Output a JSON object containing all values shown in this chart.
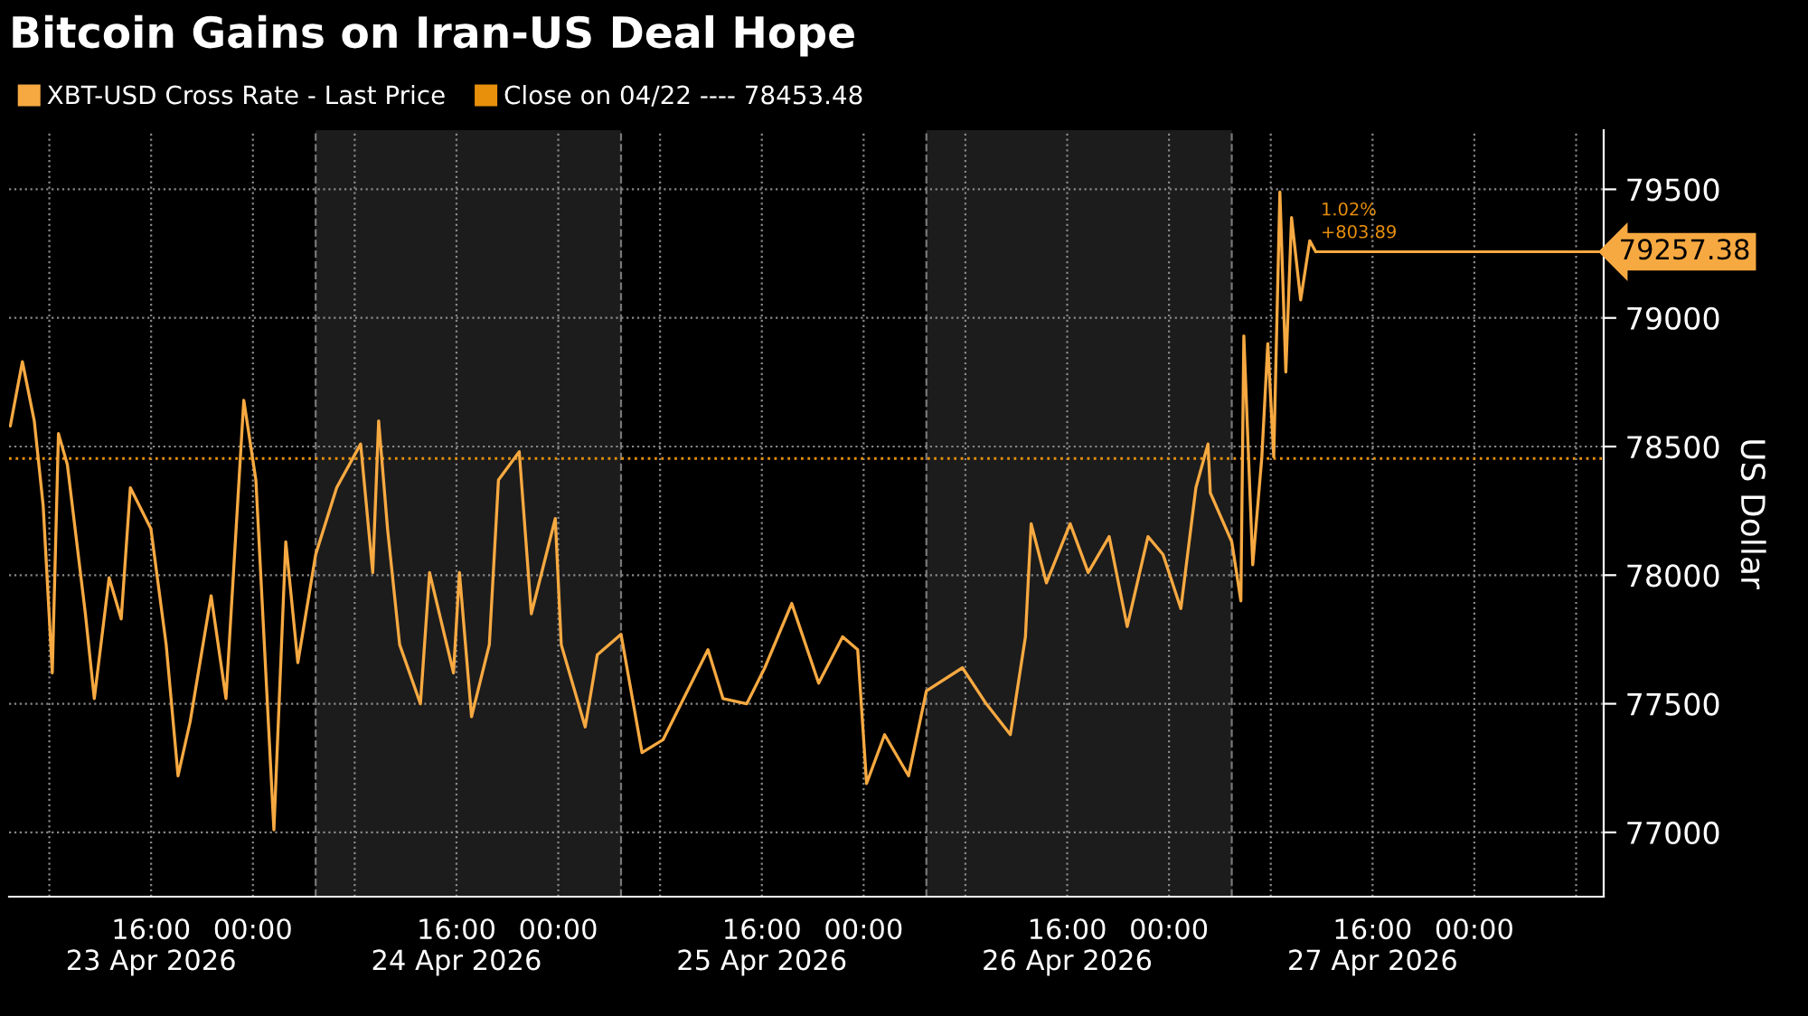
{
  "chart_data": {
    "type": "line",
    "title": "Bitcoin Gains on Iran-US Deal Hope",
    "ylabel": "US Dollar",
    "x": [
      "2026-04-23T04:56",
      "2026-04-23T05:53",
      "2026-04-23T06:49",
      "2026-04-23T07:31",
      "2026-04-23T08:14",
      "2026-04-23T08:43",
      "2026-04-23T09:25",
      "2026-04-23T10:50",
      "2026-04-23T11:32",
      "2026-04-23T12:42",
      "2026-04-23T13:39",
      "2026-04-23T14:22",
      "2026-04-23T15:59",
      "2026-04-23T17:11",
      "2026-04-23T18:07",
      "2026-04-23T19:04",
      "2026-04-23T20:43",
      "2026-04-23T21:53",
      "2026-04-23T23:17",
      "2026-04-24T00:14",
      "2026-04-24T01:39",
      "2026-04-24T02:35",
      "2026-04-24T03:32",
      "2026-04-24T04:56",
      "2026-04-24T06:35",
      "2026-04-24T08:28",
      "2026-04-24T09:25",
      "2026-04-24T09:53",
      "2026-04-24T10:35",
      "2026-04-24T11:32",
      "2026-04-24T13:10",
      "2026-04-24T13:53",
      "2026-04-24T15:46",
      "2026-04-24T16:14",
      "2026-04-24T17:11",
      "2026-04-24T18:35",
      "2026-04-24T19:18",
      "2026-04-24T20:56",
      "2026-04-24T21:53",
      "2026-04-24T23:46",
      "2026-04-25T00:14",
      "2026-04-25T02:07",
      "2026-04-25T03:04",
      "2026-04-25T03:32",
      "2026-04-25T04:56",
      "2026-04-25T06:35",
      "2026-04-25T08:14",
      "2026-04-25T11:46",
      "2026-04-25T12:57",
      "2026-04-25T14:49",
      "2026-04-25T16:14",
      "2026-04-25T18:21",
      "2026-04-25T20:28",
      "2026-04-25T22:21",
      "2026-04-25T23:32",
      "2026-04-26T00:14",
      "2026-04-26T01:39",
      "2026-04-26T03:32",
      "2026-04-26T04:56",
      "2026-04-26T07:46",
      "2026-04-26T09:38",
      "2026-04-26T11:32",
      "2026-04-26T12:43",
      "2026-04-26T13:10",
      "2026-04-26T14:22",
      "2026-04-26T16:14",
      "2026-04-26T17:39",
      "2026-04-26T19:18",
      "2026-04-26T20:43",
      "2026-04-26T22:21",
      "2026-04-26T23:32",
      "2026-04-27T00:56",
      "2026-04-27T02:07",
      "2026-04-27T03:04",
      "2026-04-27T03:15",
      "2026-04-27T04:56",
      "2026-04-27T05:39",
      "2026-04-27T05:53",
      "2026-04-27T06:35",
      "2026-04-27T07:18",
      "2026-04-27T07:46",
      "2026-04-27T08:14",
      "2026-04-27T08:43",
      "2026-04-27T09:11",
      "2026-04-27T09:38",
      "2026-04-27T10:21",
      "2026-04-27T11:04",
      "2026-04-27T11:32"
    ],
    "series": [
      {
        "name": "XBT-USD Cross Rate - Last Price",
        "color": "#f7a941",
        "values": [
          78580,
          78830,
          78600,
          78270,
          77620,
          78550,
          78430,
          77850,
          77520,
          77990,
          77830,
          78340,
          78180,
          77730,
          77220,
          77430,
          77920,
          77520,
          78680,
          78370,
          77010,
          78130,
          77660,
          78080,
          78340,
          78510,
          78010,
          78600,
          78180,
          77730,
          77500,
          78010,
          77620,
          78010,
          77450,
          77730,
          78370,
          78480,
          77850,
          78220,
          77730,
          77410,
          77690,
          77710,
          77770,
          77310,
          77360,
          77710,
          77520,
          77500,
          77640,
          77890,
          77580,
          77760,
          77710,
          77190,
          77380,
          77220,
          77550,
          77640,
          77500,
          77380,
          77760,
          78200,
          77970,
          78200,
          78010,
          78150,
          77800,
          78150,
          78080,
          77870,
          78340,
          78510,
          78320,
          78130,
          77900,
          78930,
          78040,
          78460,
          78900,
          78460,
          79490,
          78790,
          79390,
          79070,
          79300,
          79257.38
        ],
        "value_labels": [
          null,
          null,
          null,
          null,
          null,
          null,
          null,
          null,
          null,
          null,
          null,
          null,
          null,
          null,
          null,
          null,
          null,
          null,
          null,
          null,
          null,
          null,
          null,
          null,
          null,
          null,
          null,
          null,
          null,
          null,
          null,
          null,
          null,
          null,
          null,
          null,
          null,
          null,
          null,
          null,
          null,
          null,
          null,
          null,
          null,
          null,
          null,
          null,
          null,
          null,
          null,
          null,
          null,
          null,
          null,
          null,
          null,
          null,
          null,
          null,
          null,
          null,
          null,
          null,
          null,
          null,
          null,
          null,
          null,
          null,
          null,
          null,
          null,
          null,
          null,
          null,
          null,
          null,
          null,
          null,
          null,
          null,
          null,
          null,
          null,
          null,
          null,
          "79257.38"
        ]
      }
    ],
    "xlim": [
      "2026-04-23T04:50",
      "2026-04-28T10:10"
    ],
    "xticks": [
      {
        "value": "2026-04-23T08:00",
        "label": null
      },
      {
        "value": "2026-04-23T16:00",
        "label": "16:00\n23 Apr 2026"
      },
      {
        "value": "2026-04-24T00:00",
        "label": "00:00"
      },
      {
        "value": "2026-04-24T08:00",
        "label": null
      },
      {
        "value": "2026-04-24T16:00",
        "label": "16:00\n24 Apr 2026"
      },
      {
        "value": "2026-04-25T00:00",
        "label": "00:00"
      },
      {
        "value": "2026-04-25T08:00",
        "label": null
      },
      {
        "value": "2026-04-25T16:00",
        "label": "16:00\n25 Apr 2026"
      },
      {
        "value": "2026-04-26T00:00",
        "label": "00:00"
      },
      {
        "value": "2026-04-26T08:00",
        "label": null
      },
      {
        "value": "2026-04-26T16:00",
        "label": "16:00\n26 Apr 2026"
      },
      {
        "value": "2026-04-27T00:00",
        "label": "00:00"
      },
      {
        "value": "2026-04-27T08:00",
        "label": null
      },
      {
        "value": "2026-04-27T16:00",
        "label": "16:00\n27 Apr 2026"
      },
      {
        "value": "2026-04-28T00:00",
        "label": "00:00"
      },
      {
        "value": "2026-04-28T08:00",
        "label": null
      }
    ],
    "ylim": [
      76750,
      79730
    ],
    "yticks": [
      77000,
      77500,
      78000,
      78500,
      79000,
      79500
    ],
    "ref_lines": [
      {
        "axis": "y",
        "value": 78453.48,
        "label": "Close on 04/22 ---- 78453.48",
        "color": "#e8900c",
        "line_style": "dotted"
      }
    ],
    "bands": [
      {
        "axis": "x",
        "from": "2026-04-24T04:56",
        "to": "2026-04-25T04:56",
        "color": "#1c1c1c"
      },
      {
        "axis": "x",
        "from": "2026-04-26T04:56",
        "to": "2026-04-27T04:56",
        "color": "#1c1c1c"
      }
    ],
    "annotations": [
      {
        "text": "1.02%",
        "x": "2026-04-27T11:32",
        "y": 79257.38
      },
      {
        "text": "+803.89",
        "x": "2026-04-27T11:32",
        "y": 79257.38
      }
    ],
    "grid": true,
    "legend": "top left",
    "line_style": "solid",
    "marker": "none"
  }
}
